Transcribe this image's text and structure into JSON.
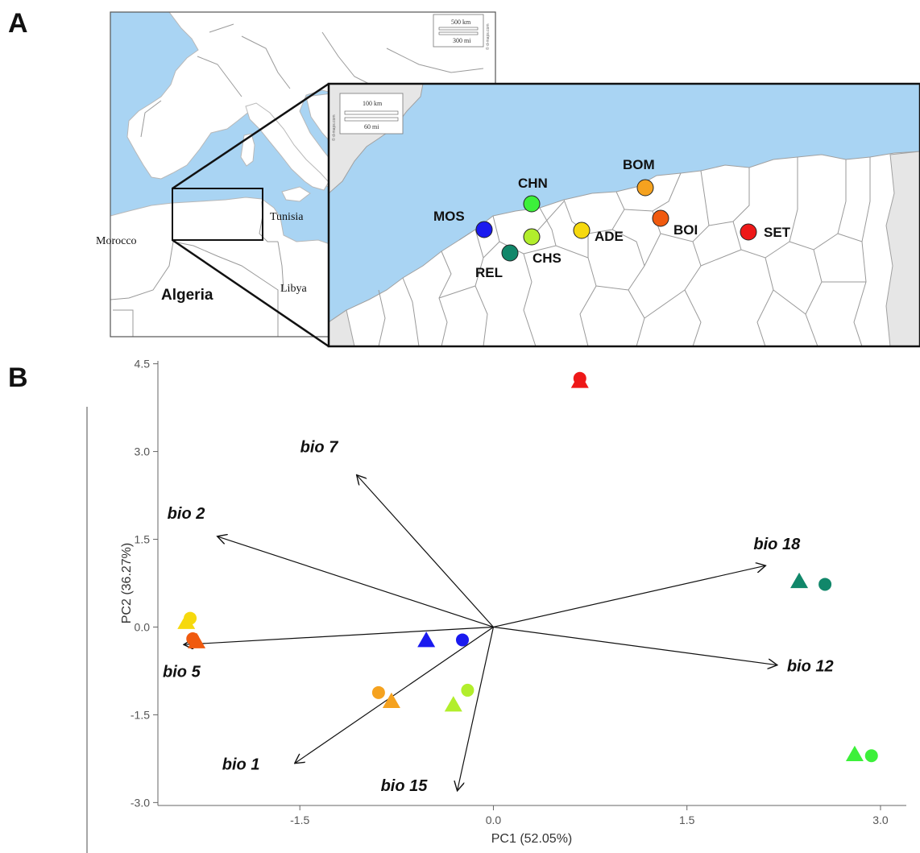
{
  "panels": {
    "a": "A",
    "b": "B"
  },
  "map": {
    "countries": {
      "morocco": "Morocco",
      "algeria": "Algeria",
      "tunisia": "Tunisia",
      "libya": "Libya"
    },
    "scale_overview": {
      "km": "500 km",
      "mi": "300 mi"
    },
    "scale_inset": {
      "km": "100 km",
      "mi": "60 mi"
    },
    "watermark": "© d-maps.com",
    "sea_color": "#a9d4f3",
    "sites": [
      {
        "code": "MOS",
        "color": "#1a1aef"
      },
      {
        "code": "CHN",
        "color": "#3cf03a"
      },
      {
        "code": "CHS",
        "color": "#b2ee2c"
      },
      {
        "code": "REL",
        "color": "#11876a"
      },
      {
        "code": "ADE",
        "color": "#f6d90e"
      },
      {
        "code": "BOM",
        "color": "#f5a21f"
      },
      {
        "code": "BOI",
        "color": "#f05a0f"
      },
      {
        "code": "SET",
        "color": "#ee1818"
      }
    ]
  },
  "chart_data": {
    "type": "scatter",
    "xlabel": "PC1 (52.05%)",
    "ylabel": "PC2 (36.27%)",
    "xlim": [
      -2.6,
      3.2
    ],
    "ylim": [
      -3.05,
      4.55
    ],
    "x_ticks": [
      -1.5,
      0.0,
      1.5,
      3.0
    ],
    "x_tick_labels": [
      "-1.5",
      "0.0",
      "1.5",
      "3.0"
    ],
    "y_ticks": [
      -3.0,
      -1.5,
      0.0,
      1.5,
      3.0,
      4.5
    ],
    "y_tick_labels": [
      "-3.0",
      "-1.5",
      "0.0",
      "1.5",
      "3.0",
      "4.5"
    ],
    "grid": false,
    "legend": "none",
    "points": [
      {
        "site": "SET",
        "shape": "circle",
        "x": 0.67,
        "y": 4.25,
        "color": "#ee1818"
      },
      {
        "site": "SET",
        "shape": "triangle",
        "x": 0.67,
        "y": 4.2,
        "color": "#ee1818"
      },
      {
        "site": "ADE",
        "shape": "circle",
        "x": -2.35,
        "y": 0.15,
        "color": "#f6d90e"
      },
      {
        "site": "ADE",
        "shape": "triangle",
        "x": -2.38,
        "y": 0.08,
        "color": "#f6d90e"
      },
      {
        "site": "BOI",
        "shape": "circle",
        "x": -2.33,
        "y": -0.2,
        "color": "#f05a0f"
      },
      {
        "site": "BOI",
        "shape": "triangle",
        "x": -2.3,
        "y": -0.25,
        "color": "#f05a0f"
      },
      {
        "site": "MOS",
        "shape": "triangle",
        "x": -0.52,
        "y": -0.23,
        "color": "#1a1aef"
      },
      {
        "site": "MOS",
        "shape": "circle",
        "x": -0.24,
        "y": -0.22,
        "color": "#1a1aef"
      },
      {
        "site": "BOM",
        "shape": "circle",
        "x": -0.89,
        "y": -1.12,
        "color": "#f5a21f"
      },
      {
        "site": "BOM",
        "shape": "triangle",
        "x": -0.79,
        "y": -1.27,
        "color": "#f5a21f"
      },
      {
        "site": "CHS",
        "shape": "triangle",
        "x": -0.31,
        "y": -1.33,
        "color": "#b2ee2c"
      },
      {
        "site": "CHS",
        "shape": "circle",
        "x": -0.2,
        "y": -1.08,
        "color": "#b2ee2c"
      },
      {
        "site": "REL",
        "shape": "triangle",
        "x": 2.37,
        "y": 0.78,
        "color": "#11876a"
      },
      {
        "site": "REL",
        "shape": "circle",
        "x": 2.57,
        "y": 0.73,
        "color": "#11876a"
      },
      {
        "site": "CHN",
        "shape": "triangle",
        "x": 2.8,
        "y": -2.18,
        "color": "#3cf03a"
      },
      {
        "site": "CHN",
        "shape": "circle",
        "x": 2.93,
        "y": -2.2,
        "color": "#3cf03a"
      }
    ],
    "vectors": [
      {
        "label": "bio 7",
        "x": -1.06,
        "y": 2.6
      },
      {
        "label": "bio 2",
        "x": -2.14,
        "y": 1.55
      },
      {
        "label": "bio 18",
        "x": 2.11,
        "y": 1.05
      },
      {
        "label": "bio 5",
        "x": -2.4,
        "y": -0.3
      },
      {
        "label": "bio 12",
        "x": 2.2,
        "y": -0.65
      },
      {
        "label": "bio 1",
        "x": -1.54,
        "y": -2.33
      },
      {
        "label": "bio 15",
        "x": -0.28,
        "y": -2.8
      }
    ]
  }
}
